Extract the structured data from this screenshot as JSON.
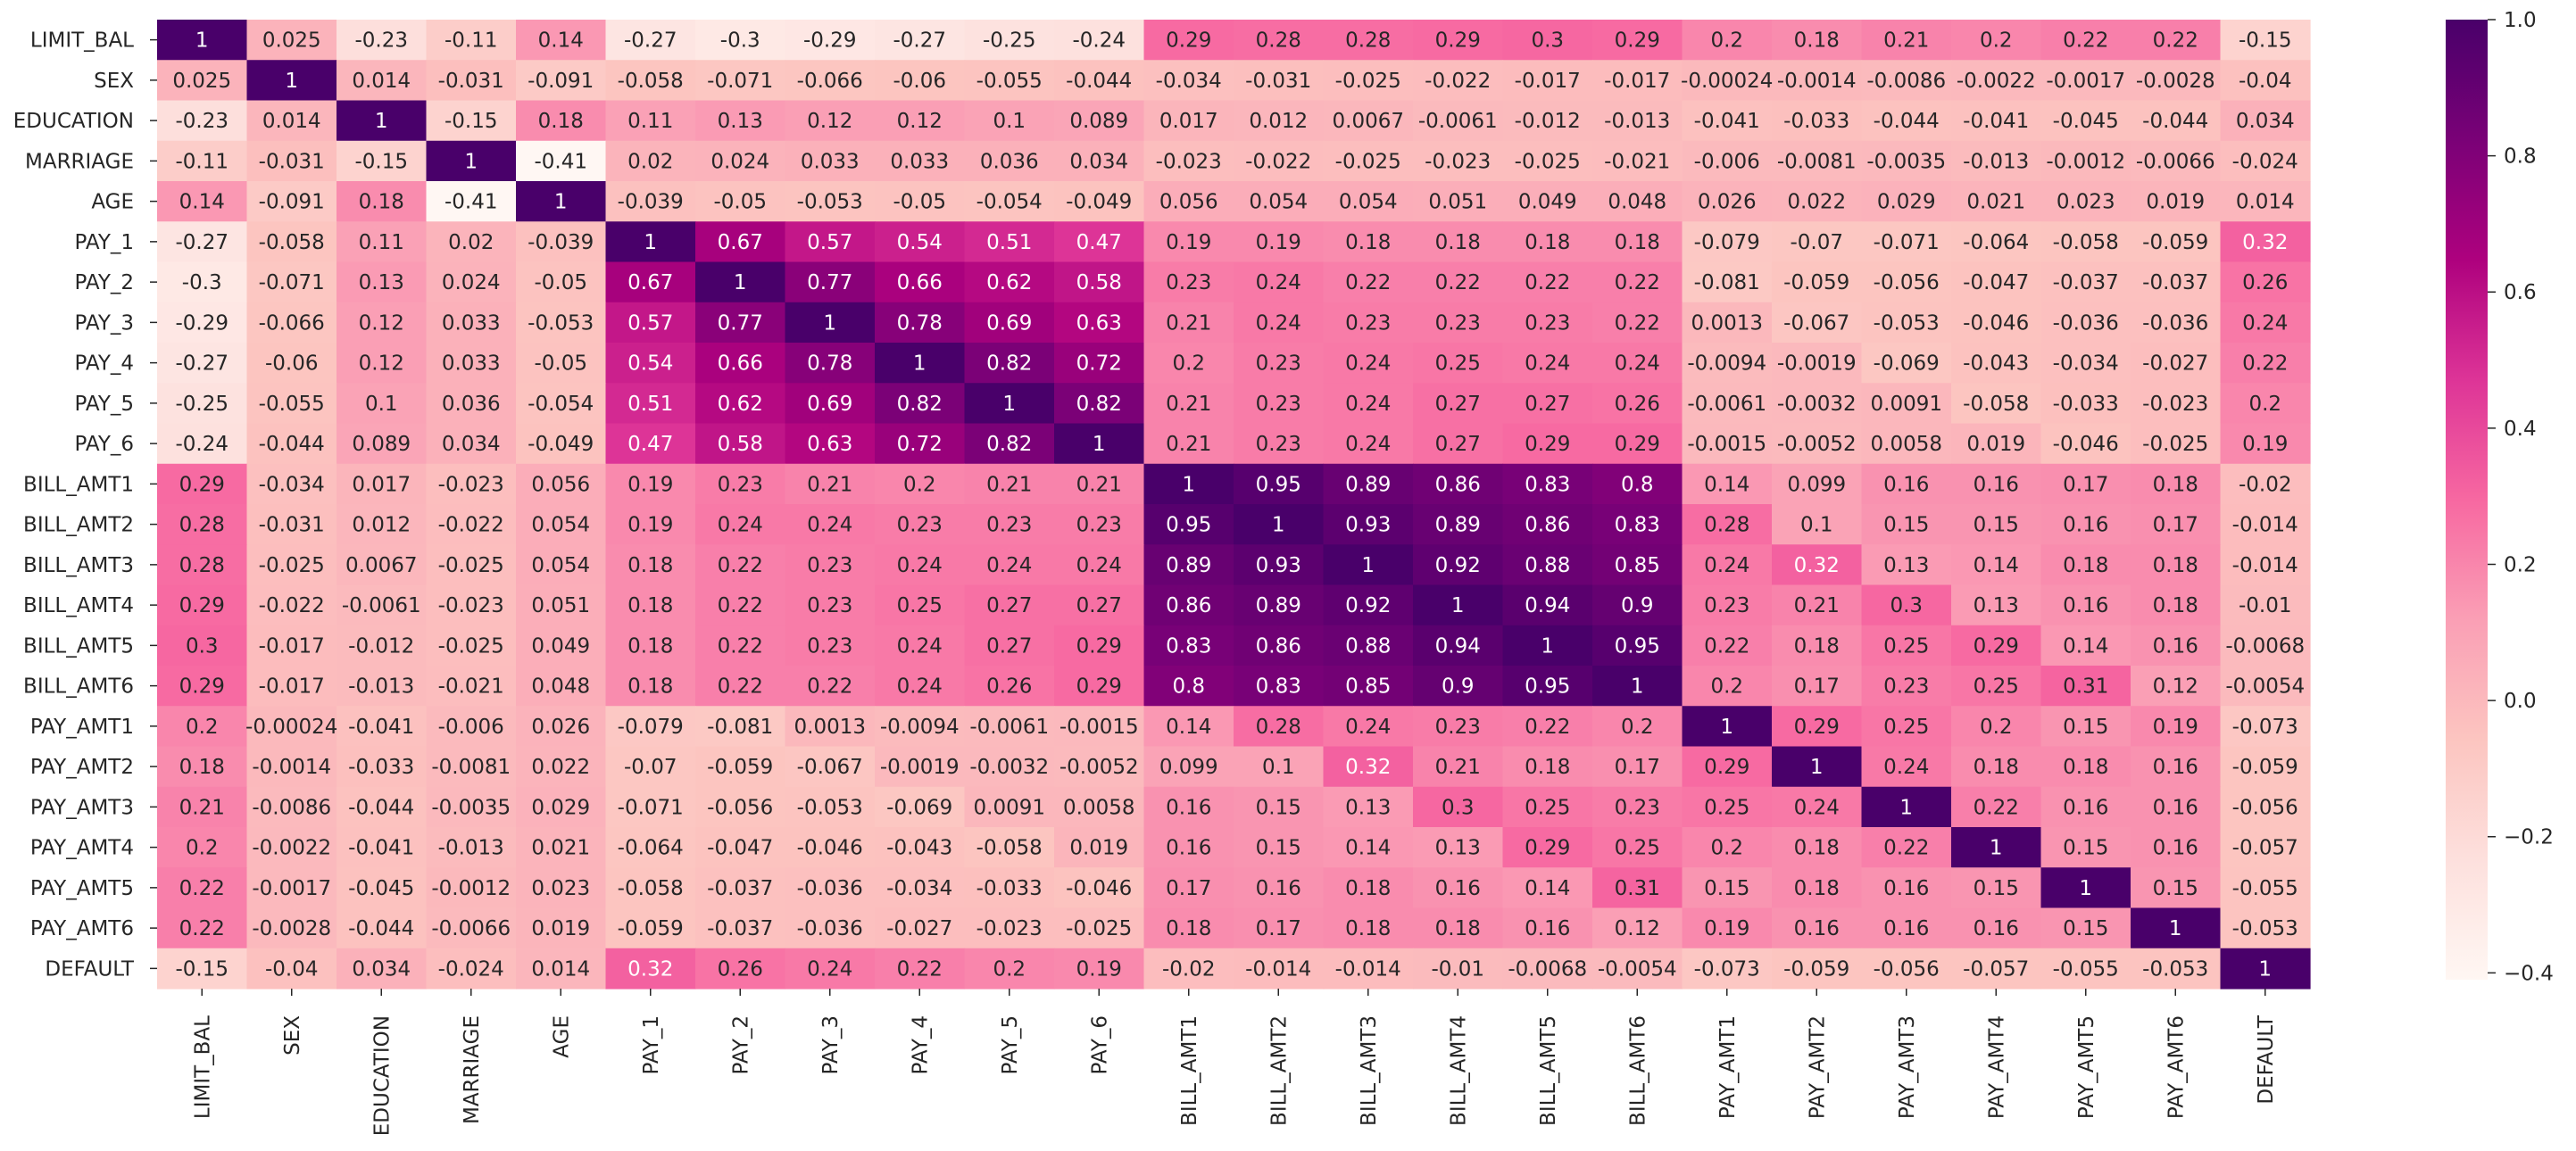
{
  "chart_data": {
    "type": "heatmap",
    "labels": [
      "LIMIT_BAL",
      "SEX",
      "EDUCATION",
      "MARRIAGE",
      "AGE",
      "PAY_1",
      "PAY_2",
      "PAY_3",
      "PAY_4",
      "PAY_5",
      "PAY_6",
      "BILL_AMT1",
      "BILL_AMT2",
      "BILL_AMT3",
      "BILL_AMT4",
      "BILL_AMT5",
      "BILL_AMT6",
      "PAY_AMT1",
      "PAY_AMT2",
      "PAY_AMT3",
      "PAY_AMT4",
      "PAY_AMT5",
      "PAY_AMT6",
      "DEFAULT"
    ],
    "cells": [
      [
        "1",
        "0.025",
        "-0.23",
        "-0.11",
        "0.14",
        "-0.27",
        "-0.3",
        "-0.29",
        "-0.27",
        "-0.25",
        "-0.24",
        "0.29",
        "0.28",
        "0.28",
        "0.29",
        "0.3",
        "0.29",
        "0.2",
        "0.18",
        "0.21",
        "0.2",
        "0.22",
        "0.22",
        "-0.15"
      ],
      [
        "0.025",
        "1",
        "0.014",
        "-0.031",
        "-0.091",
        "-0.058",
        "-0.071",
        "-0.066",
        "-0.06",
        "-0.055",
        "-0.044",
        "-0.034",
        "-0.031",
        "-0.025",
        "-0.022",
        "-0.017",
        "-0.017",
        "-0.00024",
        "-0.0014",
        "-0.0086",
        "-0.0022",
        "-0.0017",
        "-0.0028",
        "-0.04"
      ],
      [
        "-0.23",
        "0.014",
        "1",
        "-0.15",
        "0.18",
        "0.11",
        "0.13",
        "0.12",
        "0.12",
        "0.1",
        "0.089",
        "0.017",
        "0.012",
        "0.0067",
        "-0.0061",
        "-0.012",
        "-0.013",
        "-0.041",
        "-0.033",
        "-0.044",
        "-0.041",
        "-0.045",
        "-0.044",
        "0.034"
      ],
      [
        "-0.11",
        "-0.031",
        "-0.15",
        "1",
        "-0.41",
        "0.02",
        "0.024",
        "0.033",
        "0.033",
        "0.036",
        "0.034",
        "-0.023",
        "-0.022",
        "-0.025",
        "-0.023",
        "-0.025",
        "-0.021",
        "-0.006",
        "-0.0081",
        "-0.0035",
        "-0.013",
        "-0.0012",
        "-0.0066",
        "-0.024"
      ],
      [
        "0.14",
        "-0.091",
        "0.18",
        "-0.41",
        "1",
        "-0.039",
        "-0.05",
        "-0.053",
        "-0.05",
        "-0.054",
        "-0.049",
        "0.056",
        "0.054",
        "0.054",
        "0.051",
        "0.049",
        "0.048",
        "0.026",
        "0.022",
        "0.029",
        "0.021",
        "0.023",
        "0.019",
        "0.014"
      ],
      [
        "-0.27",
        "-0.058",
        "0.11",
        "0.02",
        "-0.039",
        "1",
        "0.67",
        "0.57",
        "0.54",
        "0.51",
        "0.47",
        "0.19",
        "0.19",
        "0.18",
        "0.18",
        "0.18",
        "0.18",
        "-0.079",
        "-0.07",
        "-0.071",
        "-0.064",
        "-0.058",
        "-0.059",
        "0.32"
      ],
      [
        "-0.3",
        "-0.071",
        "0.13",
        "0.024",
        "-0.05",
        "0.67",
        "1",
        "0.77",
        "0.66",
        "0.62",
        "0.58",
        "0.23",
        "0.24",
        "0.22",
        "0.22",
        "0.22",
        "0.22",
        "-0.081",
        "-0.059",
        "-0.056",
        "-0.047",
        "-0.037",
        "-0.037",
        "0.26"
      ],
      [
        "-0.29",
        "-0.066",
        "0.12",
        "0.033",
        "-0.053",
        "0.57",
        "0.77",
        "1",
        "0.78",
        "0.69",
        "0.63",
        "0.21",
        "0.24",
        "0.23",
        "0.23",
        "0.23",
        "0.22",
        "0.0013",
        "-0.067",
        "-0.053",
        "-0.046",
        "-0.036",
        "-0.036",
        "0.24"
      ],
      [
        "-0.27",
        "-0.06",
        "0.12",
        "0.033",
        "-0.05",
        "0.54",
        "0.66",
        "0.78",
        "1",
        "0.82",
        "0.72",
        "0.2",
        "0.23",
        "0.24",
        "0.25",
        "0.24",
        "0.24",
        "-0.0094",
        "-0.0019",
        "-0.069",
        "-0.043",
        "-0.034",
        "-0.027",
        "0.22"
      ],
      [
        "-0.25",
        "-0.055",
        "0.1",
        "0.036",
        "-0.054",
        "0.51",
        "0.62",
        "0.69",
        "0.82",
        "1",
        "0.82",
        "0.21",
        "0.23",
        "0.24",
        "0.27",
        "0.27",
        "0.26",
        "-0.0061",
        "-0.0032",
        "0.0091",
        "-0.058",
        "-0.033",
        "-0.023",
        "0.2"
      ],
      [
        "-0.24",
        "-0.044",
        "0.089",
        "0.034",
        "-0.049",
        "0.47",
        "0.58",
        "0.63",
        "0.72",
        "0.82",
        "1",
        "0.21",
        "0.23",
        "0.24",
        "0.27",
        "0.29",
        "0.29",
        "-0.0015",
        "-0.0052",
        "0.0058",
        "0.019",
        "-0.046",
        "-0.025",
        "0.19"
      ],
      [
        "0.29",
        "-0.034",
        "0.017",
        "-0.023",
        "0.056",
        "0.19",
        "0.23",
        "0.21",
        "0.2",
        "0.21",
        "0.21",
        "1",
        "0.95",
        "0.89",
        "0.86",
        "0.83",
        "0.8",
        "0.14",
        "0.099",
        "0.16",
        "0.16",
        "0.17",
        "0.18",
        "-0.02"
      ],
      [
        "0.28",
        "-0.031",
        "0.012",
        "-0.022",
        "0.054",
        "0.19",
        "0.24",
        "0.24",
        "0.23",
        "0.23",
        "0.23",
        "0.95",
        "1",
        "0.93",
        "0.89",
        "0.86",
        "0.83",
        "0.28",
        "0.1",
        "0.15",
        "0.15",
        "0.16",
        "0.17",
        "-0.014"
      ],
      [
        "0.28",
        "-0.025",
        "0.0067",
        "-0.025",
        "0.054",
        "0.18",
        "0.22",
        "0.23",
        "0.24",
        "0.24",
        "0.24",
        "0.89",
        "0.93",
        "1",
        "0.92",
        "0.88",
        "0.85",
        "0.24",
        "0.32",
        "0.13",
        "0.14",
        "0.18",
        "0.18",
        "-0.014"
      ],
      [
        "0.29",
        "-0.022",
        "-0.0061",
        "-0.023",
        "0.051",
        "0.18",
        "0.22",
        "0.23",
        "0.25",
        "0.27",
        "0.27",
        "0.86",
        "0.89",
        "0.92",
        "1",
        "0.94",
        "0.9",
        "0.23",
        "0.21",
        "0.3",
        "0.13",
        "0.16",
        "0.18",
        "-0.01"
      ],
      [
        "0.3",
        "-0.017",
        "-0.012",
        "-0.025",
        "0.049",
        "0.18",
        "0.22",
        "0.23",
        "0.24",
        "0.27",
        "0.29",
        "0.83",
        "0.86",
        "0.88",
        "0.94",
        "1",
        "0.95",
        "0.22",
        "0.18",
        "0.25",
        "0.29",
        "0.14",
        "0.16",
        "-0.0068"
      ],
      [
        "0.29",
        "-0.017",
        "-0.013",
        "-0.021",
        "0.048",
        "0.18",
        "0.22",
        "0.22",
        "0.24",
        "0.26",
        "0.29",
        "0.8",
        "0.83",
        "0.85",
        "0.9",
        "0.95",
        "1",
        "0.2",
        "0.17",
        "0.23",
        "0.25",
        "0.31",
        "0.12",
        "-0.0054"
      ],
      [
        "0.2",
        "-0.00024",
        "-0.041",
        "-0.006",
        "0.026",
        "-0.079",
        "-0.081",
        "0.0013",
        "-0.0094",
        "-0.0061",
        "-0.0015",
        "0.14",
        "0.28",
        "0.24",
        "0.23",
        "0.22",
        "0.2",
        "1",
        "0.29",
        "0.25",
        "0.2",
        "0.15",
        "0.19",
        "-0.073"
      ],
      [
        "0.18",
        "-0.0014",
        "-0.033",
        "-0.0081",
        "0.022",
        "-0.07",
        "-0.059",
        "-0.067",
        "-0.0019",
        "-0.0032",
        "-0.0052",
        "0.099",
        "0.1",
        "0.32",
        "0.21",
        "0.18",
        "0.17",
        "0.29",
        "1",
        "0.24",
        "0.18",
        "0.18",
        "0.16",
        "-0.059"
      ],
      [
        "0.21",
        "-0.0086",
        "-0.044",
        "-0.0035",
        "0.029",
        "-0.071",
        "-0.056",
        "-0.053",
        "-0.069",
        "0.0091",
        "0.0058",
        "0.16",
        "0.15",
        "0.13",
        "0.3",
        "0.25",
        "0.23",
        "0.25",
        "0.24",
        "1",
        "0.22",
        "0.16",
        "0.16",
        "-0.056"
      ],
      [
        "0.2",
        "-0.0022",
        "-0.041",
        "-0.013",
        "0.021",
        "-0.064",
        "-0.047",
        "-0.046",
        "-0.043",
        "-0.058",
        "0.019",
        "0.16",
        "0.15",
        "0.14",
        "0.13",
        "0.29",
        "0.25",
        "0.2",
        "0.18",
        "0.22",
        "1",
        "0.15",
        "0.16",
        "-0.057"
      ],
      [
        "0.22",
        "-0.0017",
        "-0.045",
        "-0.0012",
        "0.023",
        "-0.058",
        "-0.037",
        "-0.036",
        "-0.034",
        "-0.033",
        "-0.046",
        "0.17",
        "0.16",
        "0.18",
        "0.16",
        "0.14",
        "0.31",
        "0.15",
        "0.18",
        "0.16",
        "0.15",
        "1",
        "0.15",
        "-0.055"
      ],
      [
        "0.22",
        "-0.0028",
        "-0.044",
        "-0.0066",
        "0.019",
        "-0.059",
        "-0.037",
        "-0.036",
        "-0.027",
        "-0.023",
        "-0.025",
        "0.18",
        "0.17",
        "0.18",
        "0.18",
        "0.16",
        "0.12",
        "0.19",
        "0.16",
        "0.16",
        "0.16",
        "0.15",
        "1",
        "-0.053"
      ],
      [
        "-0.15",
        "-0.04",
        "0.034",
        "-0.024",
        "0.014",
        "0.32",
        "0.26",
        "0.24",
        "0.22",
        "0.2",
        "0.19",
        "-0.02",
        "-0.014",
        "-0.014",
        "-0.01",
        "-0.0068",
        "-0.0054",
        "-0.073",
        "-0.059",
        "-0.056",
        "-0.057",
        "-0.055",
        "-0.053",
        "1"
      ]
    ],
    "colorbar": {
      "range": [
        -0.41,
        1.0
      ],
      "ticks": [
        "1.0",
        "0.8",
        "0.6",
        "0.4",
        "0.2",
        "0.0",
        "−0.2",
        "−0.4"
      ],
      "tick_values": [
        1.0,
        0.8,
        0.6,
        0.4,
        0.2,
        0.0,
        -0.2,
        -0.4
      ],
      "colormap": "RdPu",
      "colors": [
        "#fff7f3",
        "#fde0dd",
        "#fcc5c0",
        "#fa9fb5",
        "#f768a1",
        "#dd3497",
        "#ae017e",
        "#7a0177",
        "#49006a"
      ]
    },
    "annotation_text_light": "#ffffff",
    "annotation_text_dark": "#262626",
    "tick_label_color": "#262626",
    "title": "",
    "xlabel": "",
    "ylabel": ""
  }
}
